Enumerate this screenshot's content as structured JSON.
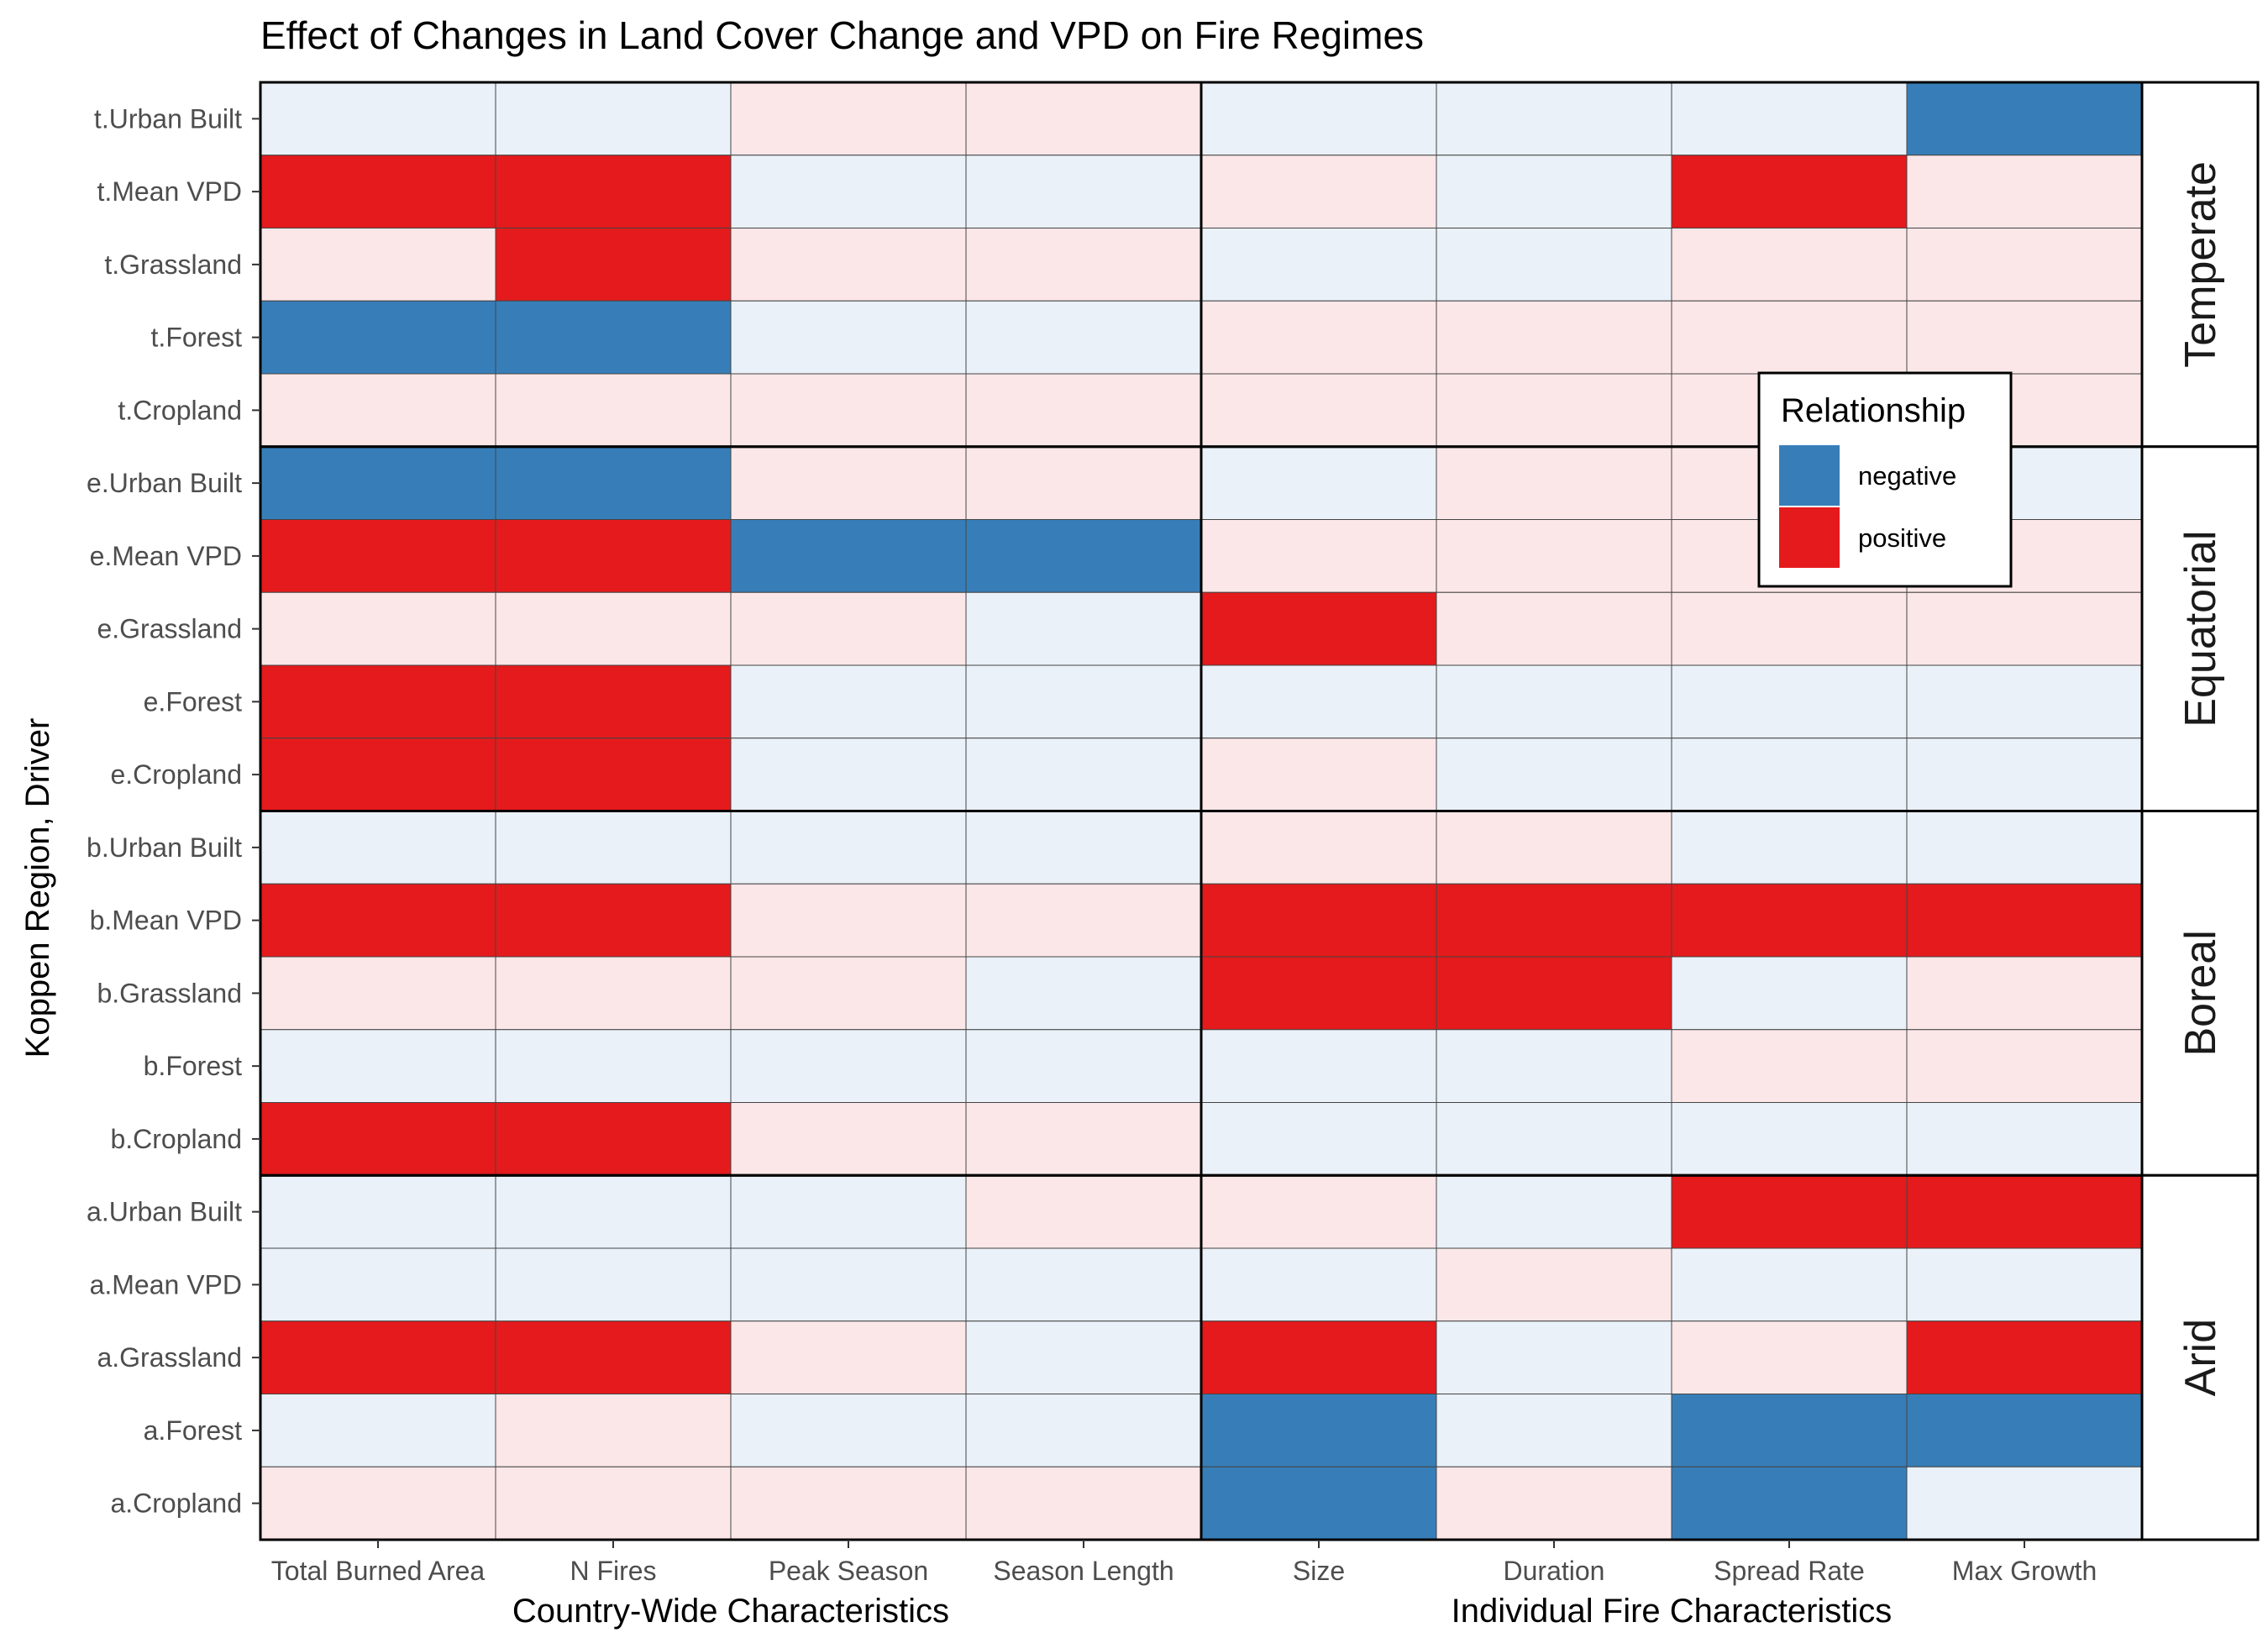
{
  "chart_data": {
    "type": "heatmap",
    "title": "Effect of Changes in Land Cover Change and VPD on Fire Regimes",
    "ylabel": "Koppen Region, Driver",
    "column_groups": [
      {
        "name": "Country-Wide Characteristics",
        "columns": [
          "Total Burned Area",
          "N Fires",
          "Peak Season",
          "Season Length"
        ]
      },
      {
        "name": "Individual Fire Characteristics",
        "columns": [
          "Size",
          "Duration",
          "Spread Rate",
          "Max Growth"
        ]
      }
    ],
    "legend": {
      "title": "Relationship",
      "position": "inside-right",
      "entries": [
        {
          "label": "negative",
          "color": "#377EB8"
        },
        {
          "label": "positive",
          "color": "#E41A1C"
        }
      ]
    },
    "colors": {
      "N": "#377EB8",
      "P": "#E41A1C",
      "n": "#EAF1F8",
      "p": "#FCE7E8",
      "border": "#444444",
      "panel_border": "#000000"
    },
    "value_codes": {
      "N": "negative (significant)",
      "P": "positive (significant)",
      "n": "negative (not significant)",
      "p": "positive (not significant)"
    },
    "regions": [
      {
        "name": "Temperate",
        "rows": [
          {
            "label": "t.Urban Built",
            "values": [
              "n",
              "n",
              "p",
              "p",
              "n",
              "n",
              "n",
              "N"
            ]
          },
          {
            "label": "t.Mean VPD",
            "values": [
              "P",
              "P",
              "n",
              "n",
              "p",
              "n",
              "P",
              "p"
            ]
          },
          {
            "label": "t.Grassland",
            "values": [
              "p",
              "P",
              "p",
              "p",
              "n",
              "n",
              "p",
              "p"
            ]
          },
          {
            "label": "t.Forest",
            "values": [
              "N",
              "N",
              "n",
              "n",
              "p",
              "p",
              "p",
              "p"
            ]
          },
          {
            "label": "t.Cropland",
            "values": [
              "p",
              "p",
              "p",
              "p",
              "p",
              "p",
              "p",
              "p"
            ]
          }
        ]
      },
      {
        "name": "Equatorial",
        "rows": [
          {
            "label": "e.Urban Built",
            "values": [
              "N",
              "N",
              "p",
              "p",
              "n",
              "p",
              "p",
              "n"
            ]
          },
          {
            "label": "e.Mean VPD",
            "values": [
              "P",
              "P",
              "N",
              "N",
              "p",
              "p",
              "p",
              "p"
            ]
          },
          {
            "label": "e.Grassland",
            "values": [
              "p",
              "p",
              "p",
              "n",
              "P",
              "p",
              "p",
              "p"
            ]
          },
          {
            "label": "e.Forest",
            "values": [
              "P",
              "P",
              "n",
              "n",
              "n",
              "n",
              "n",
              "n"
            ]
          },
          {
            "label": "e.Cropland",
            "values": [
              "P",
              "P",
              "n",
              "n",
              "p",
              "n",
              "n",
              "n"
            ]
          }
        ]
      },
      {
        "name": "Boreal",
        "rows": [
          {
            "label": "b.Urban Built",
            "values": [
              "n",
              "n",
              "n",
              "n",
              "p",
              "p",
              "n",
              "n"
            ]
          },
          {
            "label": "b.Mean VPD",
            "values": [
              "P",
              "P",
              "p",
              "p",
              "P",
              "P",
              "P",
              "P"
            ]
          },
          {
            "label": "b.Grassland",
            "values": [
              "p",
              "p",
              "p",
              "n",
              "P",
              "P",
              "n",
              "p"
            ]
          },
          {
            "label": "b.Forest",
            "values": [
              "n",
              "n",
              "n",
              "n",
              "n",
              "n",
              "p",
              "p"
            ]
          },
          {
            "label": "b.Cropland",
            "values": [
              "P",
              "P",
              "p",
              "p",
              "n",
              "n",
              "n",
              "n"
            ]
          }
        ]
      },
      {
        "name": "Arid",
        "rows": [
          {
            "label": "a.Urban Built",
            "values": [
              "n",
              "n",
              "n",
              "p",
              "p",
              "n",
              "P",
              "P"
            ]
          },
          {
            "label": "a.Mean VPD",
            "values": [
              "n",
              "n",
              "n",
              "n",
              "n",
              "p",
              "n",
              "n"
            ]
          },
          {
            "label": "a.Grassland",
            "values": [
              "P",
              "P",
              "p",
              "n",
              "P",
              "n",
              "p",
              "P"
            ]
          },
          {
            "label": "a.Forest",
            "values": [
              "n",
              "p",
              "n",
              "n",
              "N",
              "n",
              "N",
              "N"
            ]
          },
          {
            "label": "a.Cropland",
            "values": [
              "p",
              "p",
              "p",
              "p",
              "N",
              "p",
              "N",
              "n"
            ]
          }
        ]
      }
    ]
  }
}
